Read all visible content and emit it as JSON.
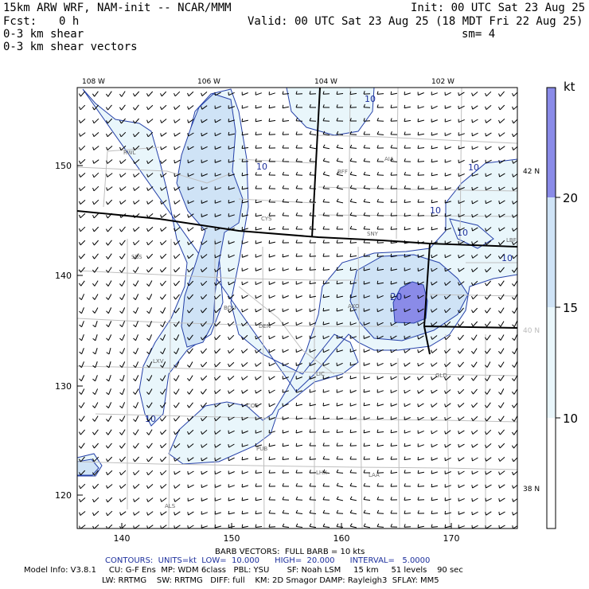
{
  "header": {
    "model_title": "15km ARW WRF, NAM-init -- NCAR/MMM",
    "init": "Init: 00 UTC Sat 23 Aug 25",
    "fcst_label": "Fcst:",
    "fcst_value": "0 h",
    "valid": "Valid: 00 UTC Sat 23 Aug 25 (18 MDT Fri 22 Aug 25)",
    "field_1": "0-3 km shear",
    "smoothing": "sm= 4",
    "field_2": "0-3 km shear vectors"
  },
  "map": {
    "longitude_labels": [
      "108 W",
      "106 W",
      "104 W",
      "102 W"
    ],
    "latitude_labels": [
      "42 N",
      "40 N",
      "38 N"
    ],
    "x_grid_labels": [
      "140",
      "150",
      "160",
      "170"
    ],
    "y_grid_labels": [
      "150",
      "140",
      "130",
      "120"
    ],
    "station_labels": [
      "RWL",
      "BFF",
      "AIA",
      "CYS",
      "SNY",
      "LBF",
      "SBS",
      "AKO",
      "BOU",
      "DEN",
      "LXV",
      "LIC",
      "GLD",
      "COS",
      "PUB",
      "LHX",
      "LAA",
      "ALS"
    ],
    "contour_labels": [
      "10",
      "10",
      "10",
      "10",
      "10",
      "10",
      "10",
      "20"
    ]
  },
  "colorbar": {
    "unit": "kt",
    "levels": [
      "20",
      "15",
      "10"
    ],
    "colors": [
      "#ffffff",
      "#e9f6fb",
      "#cfe3f6",
      "#b9c9f5",
      "#8a8be8"
    ]
  },
  "footer": {
    "barb_note": "BARB VECTORS:  FULL BARB = 10 kts",
    "contours": "CONTOURS:  UNITS=kt  LOW=  10.000      HIGH=  20.000      INTERVAL=   5.0000",
    "model_info": "Model Info: V3.8.1     CU: G-F Ens  MP: WDM 6class   PBL: YSU       SF: Noah LSM     15 km     51 levels    90 sec",
    "physics": "LW: RRTMG    SW: RRTMG   DIFF: full    KM: 2D Smagor DAMP: Rayleigh3  SFLAY: MM5"
  }
}
